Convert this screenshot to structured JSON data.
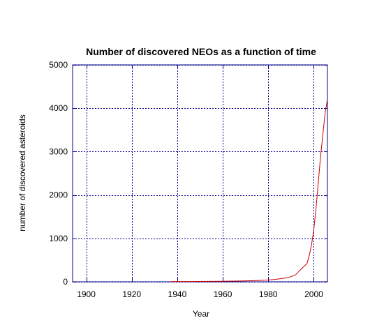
{
  "chart_data": {
    "type": "line",
    "title": "Number of discovered NEOs as a function of time",
    "xlabel": "Year",
    "ylabel": "number of discovered asteroids",
    "xlim": [
      1894,
      2006
    ],
    "ylim": [
      0,
      5000
    ],
    "x_ticks": [
      1900,
      1920,
      1940,
      1960,
      1980,
      2000
    ],
    "x_tick_labels": [
      "1900",
      "1920",
      "1940",
      "1960",
      "1980",
      "2000"
    ],
    "y_ticks": [
      0,
      1000,
      2000,
      3000,
      4000,
      5000
    ],
    "y_tick_labels": [
      "0",
      "1000",
      "2000",
      "3000",
      "4000",
      "5000"
    ],
    "grid": true,
    "legend": false,
    "colors": {
      "line": "#cc0000",
      "frame": "#00008b",
      "grid": "#00008b"
    },
    "series": [
      {
        "x": [
          1937,
          1945,
          1950,
          1960,
          1970,
          1975,
          1980,
          1983,
          1986,
          1989,
          1992,
          1994,
          1996,
          1997,
          1998,
          1999,
          2000,
          2001,
          2002,
          2003,
          2004,
          2005,
          2006
        ],
        "y": [
          5,
          6,
          8,
          12,
          20,
          28,
          40,
          55,
          75,
          100,
          160,
          270,
          370,
          420,
          600,
          850,
          1200,
          1700,
          2300,
          2900,
          3400,
          3900,
          4200
        ]
      }
    ]
  }
}
